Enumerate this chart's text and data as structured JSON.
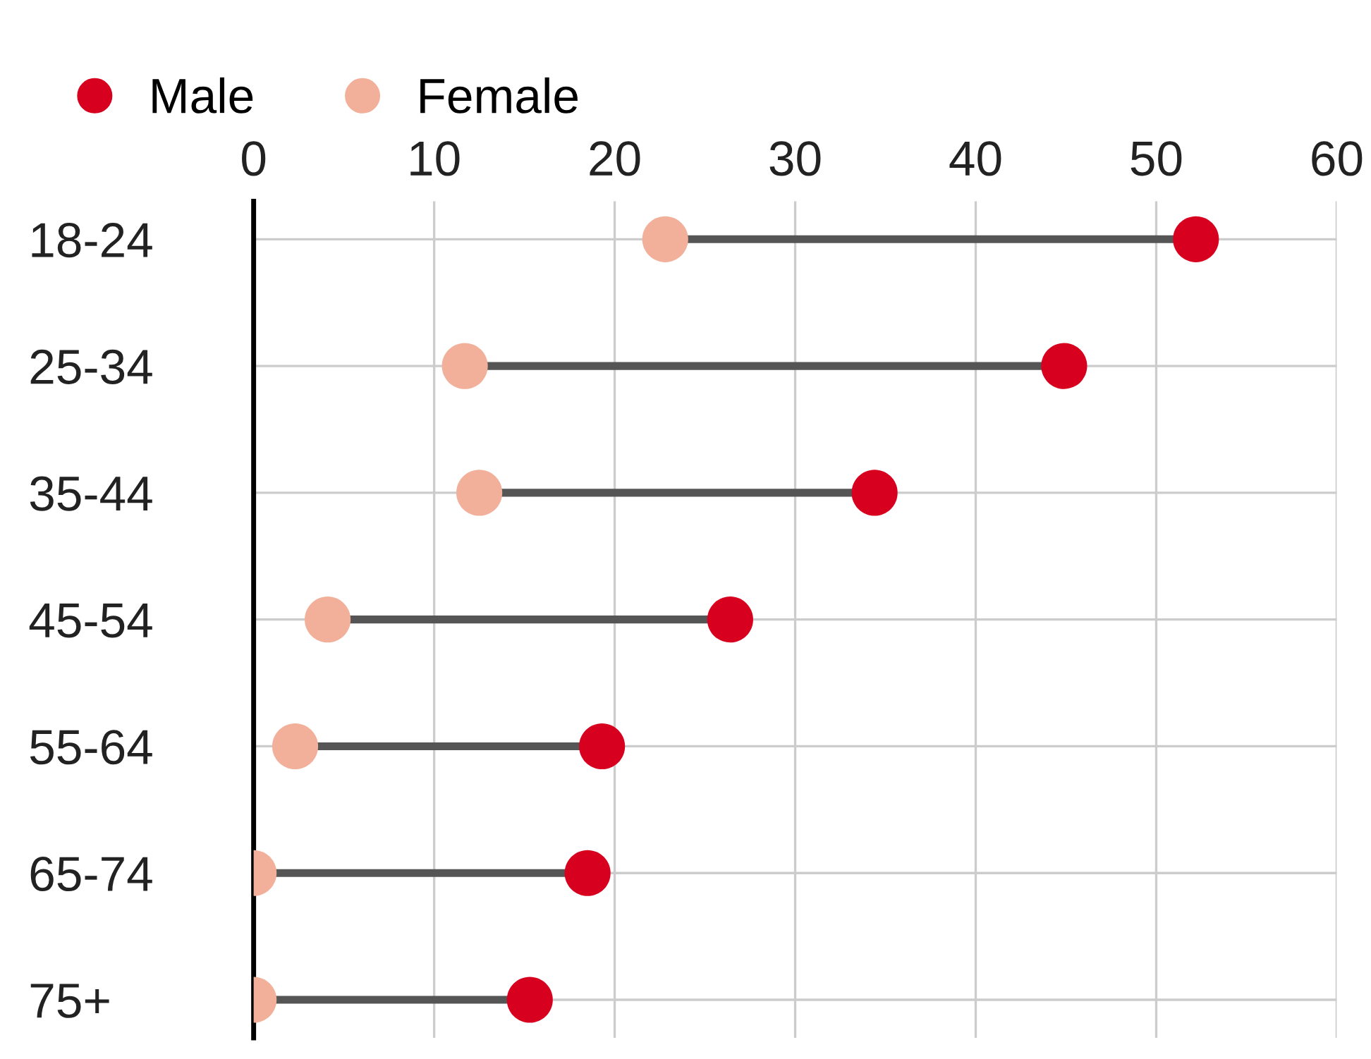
{
  "chart_data": {
    "type": "scatter",
    "orientation": "horizontal",
    "categories": [
      "18-24",
      "25-34",
      "35-44",
      "45-54",
      "55-64",
      "65-74",
      "75+"
    ],
    "series": [
      {
        "name": "Male",
        "color": "#d7001e",
        "values": [
          52.2,
          44.9,
          34.4,
          26.4,
          19.3,
          18.5,
          15.3
        ]
      },
      {
        "name": "Female",
        "color": "#f2b09a",
        "values": [
          22.8,
          11.7,
          12.5,
          4.1,
          2.3,
          0,
          0
        ]
      }
    ],
    "xlim": [
      0,
      60
    ],
    "xticks": [
      0,
      10,
      20,
      30,
      40,
      50,
      60
    ],
    "grid": true,
    "legend": "top left",
    "marker": "circle"
  }
}
